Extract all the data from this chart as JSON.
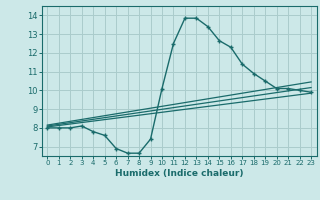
{
  "title": "",
  "xlabel": "Humidex (Indice chaleur)",
  "bg_color": "#cce8e8",
  "grid_color": "#aacccc",
  "line_color": "#1a6b6b",
  "xlim": [
    -0.5,
    23.5
  ],
  "ylim": [
    6.5,
    14.5
  ],
  "xticks": [
    0,
    1,
    2,
    3,
    4,
    5,
    6,
    7,
    8,
    9,
    10,
    11,
    12,
    13,
    14,
    15,
    16,
    17,
    18,
    19,
    20,
    21,
    22,
    23
  ],
  "yticks": [
    7,
    8,
    9,
    10,
    11,
    12,
    13,
    14
  ],
  "curve1_x": [
    0,
    1,
    2,
    3,
    4,
    5,
    6,
    7,
    8,
    9,
    10,
    11,
    12,
    13,
    14,
    15,
    16,
    17,
    18,
    19,
    20,
    21,
    22,
    23
  ],
  "curve1_y": [
    8.0,
    8.0,
    8.0,
    8.1,
    7.8,
    7.6,
    6.9,
    6.65,
    6.65,
    7.4,
    10.1,
    12.5,
    13.85,
    13.85,
    13.4,
    12.65,
    12.3,
    11.4,
    10.9,
    10.5,
    10.1,
    10.1,
    10.0,
    9.9
  ],
  "trend1_x": [
    0,
    23
  ],
  "trend1_y": [
    8.05,
    9.85
  ],
  "trend2_x": [
    0,
    23
  ],
  "trend2_y": [
    8.1,
    10.15
  ],
  "trend3_x": [
    0,
    23
  ],
  "trend3_y": [
    8.15,
    10.45
  ]
}
